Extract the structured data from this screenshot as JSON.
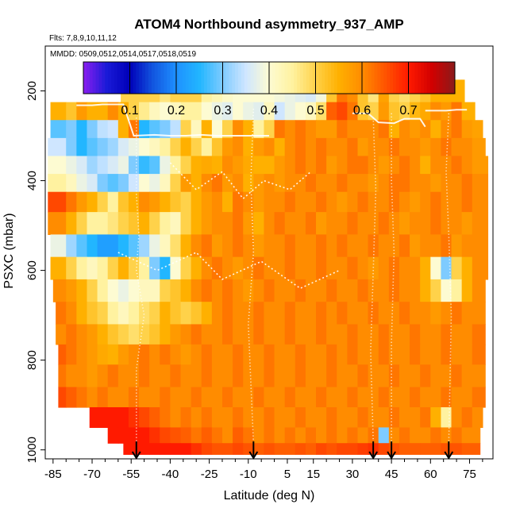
{
  "chart_data": {
    "type": "heatmap",
    "title": "ATOM4 Northbound asymmetry_937_AMP",
    "subtitle_flights": "Flts: 7,8,9,10,11,12",
    "subtitle_dates": "MMDD: 0509,0512,0514,0517,0518,0519",
    "xlabel": "Latitude (deg N)",
    "ylabel": "PSXC (mbar)",
    "xlim": [
      -88,
      84
    ],
    "ylim": [
      1020,
      100
    ],
    "x_ticks": [
      -85,
      -70,
      -55,
      -40,
      -25,
      -10,
      5,
      15,
      30,
      45,
      60,
      75
    ],
    "x_minor_ticks": [
      -80,
      -75,
      -65,
      -60,
      -50,
      -45,
      -35,
      -30,
      -20,
      -15,
      -5,
      0,
      10,
      20,
      25,
      35,
      40,
      50,
      55,
      65,
      70,
      80
    ],
    "y_ticks": [
      200,
      400,
      600,
      800,
      1000
    ],
    "colorbar": {
      "range": [
        0.0,
        0.8
      ],
      "tick_values": [
        0.1,
        0.2,
        0.3,
        0.4,
        0.5,
        0.6,
        0.7
      ],
      "tick_labels": [
        "0.1",
        "0.2",
        "0.3",
        "0.4",
        "0.5",
        "0.6",
        "0.7"
      ],
      "colors": [
        "#8b1ff0",
        "#1a1ad8",
        "#0000b8",
        "#1256e0",
        "#1e90ff",
        "#22b6ff",
        "#7ecbff",
        "#cfe6ff",
        "#fdfbd2",
        "#fff2a0",
        "#ffd24a",
        "#ffb000",
        "#ff8c00",
        "#ff5400",
        "#ff1a00",
        "#d20000",
        "#8b1a1a"
      ]
    },
    "arrow_latitudes": [
      -53,
      -8,
      38,
      45,
      67
    ],
    "x_edges": [
      -84,
      -80,
      -76,
      -72,
      -68,
      -64,
      -60,
      -56,
      -52,
      -48,
      -44,
      -40,
      -36,
      -32,
      -28,
      -24,
      -20,
      -16,
      -12,
      -8,
      -4,
      0,
      4,
      8,
      12,
      16,
      20,
      24,
      28,
      32,
      36,
      40,
      44,
      48,
      52,
      56,
      60,
      64,
      68,
      72,
      76,
      80
    ],
    "levels": [
      {
        "p_top": 175,
        "p_bot": 225,
        "lat_min": -59,
        "lat_max": 73,
        "values": [
          0.5,
          0.5,
          0.5,
          0.5,
          0.5,
          0.5,
          0.5,
          0.5,
          0.5,
          0.5,
          0.47,
          0.5,
          0.5,
          0.5,
          0.45,
          0.43,
          0.41,
          0.4,
          0.4,
          0.4,
          0.4,
          0.39,
          0.38,
          0.37,
          0.36,
          0.39,
          0.52,
          0.62,
          0.6,
          0.52,
          0.47,
          0.57,
          0.5,
          0.48,
          0.5,
          0.52,
          0.55,
          0.55,
          0.55,
          0.55,
          0.55
        ]
      },
      {
        "p_top": 225,
        "p_bot": 265,
        "lat_min": -86,
        "lat_max": 77,
        "values": [
          0.55,
          0.52,
          0.58,
          0.55,
          0.55,
          0.6,
          0.55,
          0.5,
          0.46,
          0.42,
          0.4,
          0.42,
          0.45,
          0.45,
          0.4,
          0.38,
          0.37,
          0.4,
          0.38,
          0.37,
          0.42,
          0.35,
          0.38,
          0.4,
          0.42,
          0.48,
          0.64,
          0.66,
          0.62,
          0.52,
          0.5,
          0.58,
          0.52,
          0.5,
          0.54,
          0.56,
          0.6,
          0.58,
          0.62,
          0.55,
          0.55
        ]
      },
      {
        "p_top": 265,
        "p_bot": 305,
        "lat_min": -86,
        "lat_max": 80,
        "values": [
          0.28,
          0.3,
          0.25,
          0.3,
          0.34,
          0.35,
          0.55,
          0.62,
          0.25,
          0.28,
          0.3,
          0.34,
          0.5,
          0.42,
          0.55,
          0.4,
          0.5,
          0.6,
          0.55,
          0.45,
          0.5,
          0.62,
          0.6,
          0.62,
          0.6,
          0.58,
          0.58,
          0.62,
          0.6,
          0.6,
          0.6,
          0.62,
          0.55,
          0.6,
          0.58,
          0.6,
          0.55,
          0.6,
          0.62,
          0.58,
          0.57
        ]
      },
      {
        "p_top": 305,
        "p_bot": 345,
        "lat_min": -87,
        "lat_max": 81,
        "values": [
          0.35,
          0.3,
          0.25,
          0.28,
          0.3,
          0.32,
          0.36,
          0.38,
          0.4,
          0.42,
          0.45,
          0.5,
          0.55,
          0.5,
          0.45,
          0.52,
          0.58,
          0.6,
          0.55,
          0.58,
          0.6,
          0.55,
          0.6,
          0.62,
          0.6,
          0.62,
          0.6,
          0.6,
          0.62,
          0.58,
          0.6,
          0.6,
          0.62,
          0.6,
          0.6,
          0.58,
          0.6,
          0.62,
          0.6,
          0.6,
          0.58
        ]
      },
      {
        "p_top": 345,
        "p_bot": 385,
        "lat_min": -87,
        "lat_max": 82,
        "values": [
          0.4,
          0.38,
          0.36,
          0.32,
          0.34,
          0.36,
          0.38,
          0.3,
          0.26,
          0.28,
          0.38,
          0.45,
          0.5,
          0.55,
          0.56,
          0.55,
          0.6,
          0.58,
          0.56,
          0.55,
          0.55,
          0.58,
          0.6,
          0.62,
          0.6,
          0.62,
          0.58,
          0.6,
          0.62,
          0.62,
          0.6,
          0.58,
          0.6,
          0.62,
          0.6,
          0.55,
          0.6,
          0.6,
          0.62,
          0.6,
          0.58
        ]
      },
      {
        "p_top": 385,
        "p_bot": 425,
        "lat_min": -87,
        "lat_max": 82,
        "values": [
          0.45,
          0.42,
          0.38,
          0.36,
          0.3,
          0.28,
          0.3,
          0.35,
          0.4,
          0.38,
          0.42,
          0.5,
          0.58,
          0.55,
          0.6,
          0.62,
          0.58,
          0.6,
          0.55,
          0.58,
          0.6,
          0.58,
          0.6,
          0.6,
          0.62,
          0.6,
          0.6,
          0.62,
          0.6,
          0.6,
          0.58,
          0.6,
          0.62,
          0.62,
          0.6,
          0.6,
          0.58,
          0.6,
          0.6,
          0.62,
          0.6
        ]
      },
      {
        "p_top": 425,
        "p_bot": 470,
        "lat_min": -87,
        "lat_max": 82,
        "values": [
          0.66,
          0.62,
          0.58,
          0.55,
          0.5,
          0.45,
          0.52,
          0.55,
          0.6,
          0.58,
          0.55,
          0.52,
          0.5,
          0.55,
          0.58,
          0.6,
          0.55,
          0.62,
          0.6,
          0.58,
          0.6,
          0.6,
          0.62,
          0.6,
          0.6,
          0.62,
          0.6,
          0.58,
          0.6,
          0.62,
          0.6,
          0.6,
          0.62,
          0.6,
          0.58,
          0.6,
          0.62,
          0.6,
          0.6,
          0.62,
          0.6
        ]
      },
      {
        "p_top": 470,
        "p_bot": 520,
        "lat_min": -87,
        "lat_max": 82,
        "values": [
          0.6,
          0.55,
          0.5,
          0.45,
          0.45,
          0.47,
          0.5,
          0.52,
          0.55,
          0.5,
          0.45,
          0.42,
          0.5,
          0.55,
          0.58,
          0.6,
          0.6,
          0.62,
          0.58,
          0.55,
          0.6,
          0.62,
          0.6,
          0.6,
          0.62,
          0.58,
          0.6,
          0.6,
          0.62,
          0.6,
          0.6,
          0.62,
          0.6,
          0.58,
          0.6,
          0.6,
          0.62,
          0.6,
          0.6,
          0.58,
          0.6
        ]
      },
      {
        "p_top": 520,
        "p_bot": 570,
        "lat_min": -86,
        "lat_max": 82,
        "values": [
          0.38,
          0.32,
          0.28,
          0.25,
          0.22,
          0.22,
          0.25,
          0.28,
          0.32,
          0.38,
          0.42,
          0.48,
          0.55,
          0.6,
          0.62,
          0.58,
          0.6,
          0.62,
          0.6,
          0.58,
          0.6,
          0.6,
          0.62,
          0.6,
          0.6,
          0.62,
          0.6,
          0.62,
          0.6,
          0.6,
          0.62,
          0.6,
          0.6,
          0.62,
          0.58,
          0.6,
          0.6,
          0.62,
          0.58,
          0.6,
          0.6
        ]
      },
      {
        "p_top": 570,
        "p_bot": 620,
        "lat_min": -86,
        "lat_max": 82,
        "values": [
          0.55,
          0.5,
          0.45,
          0.42,
          0.45,
          0.5,
          0.55,
          0.5,
          0.45,
          0.3,
          0.25,
          0.4,
          0.5,
          0.55,
          0.6,
          0.62,
          0.6,
          0.58,
          0.6,
          0.62,
          0.6,
          0.6,
          0.62,
          0.6,
          0.6,
          0.62,
          0.6,
          0.6,
          0.62,
          0.6,
          0.58,
          0.6,
          0.62,
          0.6,
          0.6,
          0.55,
          0.4,
          0.3,
          0.5,
          0.55,
          0.6
        ]
      },
      {
        "p_top": 620,
        "p_bot": 670,
        "lat_min": -85,
        "lat_max": 81,
        "values": [
          0.6,
          0.58,
          0.55,
          0.5,
          0.45,
          0.4,
          0.38,
          0.4,
          0.42,
          0.42,
          0.5,
          0.52,
          0.55,
          0.6,
          0.62,
          0.6,
          0.62,
          0.6,
          0.58,
          0.6,
          0.62,
          0.6,
          0.6,
          0.62,
          0.6,
          0.6,
          0.62,
          0.6,
          0.6,
          0.62,
          0.6,
          0.6,
          0.62,
          0.6,
          0.6,
          0.55,
          0.5,
          0.4,
          0.45,
          0.55,
          0.6
        ]
      },
      {
        "p_top": 670,
        "p_bot": 720,
        "lat_min": -84,
        "lat_max": 81,
        "values": [
          0.62,
          0.6,
          0.55,
          0.52,
          0.5,
          0.45,
          0.42,
          0.45,
          0.48,
          0.5,
          0.55,
          0.52,
          0.5,
          0.52,
          0.55,
          0.6,
          0.62,
          0.6,
          0.6,
          0.62,
          0.6,
          0.6,
          0.62,
          0.6,
          0.6,
          0.62,
          0.6,
          0.62,
          0.6,
          0.6,
          0.62,
          0.6,
          0.6,
          0.62,
          0.6,
          0.6,
          0.58,
          0.6,
          0.62,
          0.6,
          0.6
        ]
      },
      {
        "p_top": 720,
        "p_bot": 765,
        "lat_min": -84,
        "lat_max": 81,
        "values": [
          0.6,
          0.62,
          0.6,
          0.58,
          0.55,
          0.52,
          0.5,
          0.48,
          0.5,
          0.52,
          0.55,
          0.58,
          0.6,
          0.62,
          0.6,
          0.6,
          0.62,
          0.6,
          0.6,
          0.62,
          0.6,
          0.6,
          0.62,
          0.6,
          0.6,
          0.62,
          0.6,
          0.6,
          0.62,
          0.6,
          0.6,
          0.62,
          0.6,
          0.6,
          0.62,
          0.6,
          0.6,
          0.62,
          0.6,
          0.6,
          0.62
        ]
      },
      {
        "p_top": 765,
        "p_bot": 810,
        "lat_min": -83,
        "lat_max": 81,
        "values": [
          0.64,
          0.62,
          0.6,
          0.58,
          0.56,
          0.55,
          0.58,
          0.6,
          0.62,
          0.6,
          0.62,
          0.6,
          0.58,
          0.6,
          0.62,
          0.6,
          0.6,
          0.62,
          0.6,
          0.6,
          0.62,
          0.6,
          0.6,
          0.62,
          0.6,
          0.6,
          0.62,
          0.6,
          0.62,
          0.6,
          0.6,
          0.62,
          0.6,
          0.6,
          0.62,
          0.6,
          0.6,
          0.62,
          0.6,
          0.6,
          0.62
        ]
      },
      {
        "p_top": 810,
        "p_bot": 860,
        "lat_min": -83,
        "lat_max": 81,
        "values": [
          0.62,
          0.6,
          0.6,
          0.58,
          0.6,
          0.62,
          0.6,
          0.6,
          0.62,
          0.6,
          0.6,
          0.62,
          0.6,
          0.6,
          0.62,
          0.6,
          0.6,
          0.62,
          0.6,
          0.6,
          0.62,
          0.6,
          0.6,
          0.62,
          0.6,
          0.6,
          0.62,
          0.6,
          0.6,
          0.62,
          0.6,
          0.6,
          0.62,
          0.6,
          0.6,
          0.62,
          0.6,
          0.6,
          0.62,
          0.6,
          0.6
        ]
      },
      {
        "p_top": 860,
        "p_bot": 905,
        "lat_min": -83,
        "lat_max": 81,
        "values": [
          0.66,
          0.64,
          0.62,
          0.6,
          0.62,
          0.6,
          0.6,
          0.62,
          0.6,
          0.6,
          0.62,
          0.6,
          0.6,
          0.62,
          0.6,
          0.6,
          0.62,
          0.6,
          0.6,
          0.62,
          0.6,
          0.6,
          0.62,
          0.6,
          0.6,
          0.62,
          0.6,
          0.6,
          0.62,
          0.6,
          0.6,
          0.62,
          0.6,
          0.6,
          0.62,
          0.6,
          0.6,
          0.62,
          0.6,
          0.6,
          0.62
        ]
      },
      {
        "p_top": 905,
        "p_bot": 950,
        "lat_min": -71,
        "lat_max": 80,
        "values": [
          0.7,
          0.7,
          0.7,
          0.7,
          0.7,
          0.7,
          0.7,
          0.68,
          0.66,
          0.64,
          0.62,
          0.6,
          0.62,
          0.6,
          0.62,
          0.6,
          0.6,
          0.62,
          0.6,
          0.6,
          0.62,
          0.6,
          0.6,
          0.62,
          0.6,
          0.6,
          0.62,
          0.6,
          0.6,
          0.62,
          0.6,
          0.6,
          0.62,
          0.6,
          0.6,
          0.62,
          0.55,
          0.45,
          0.6,
          0.62,
          0.6
        ]
      },
      {
        "p_top": 950,
        "p_bot": 985,
        "lat_min": -64,
        "lat_max": 79,
        "values": [
          0.7,
          0.7,
          0.7,
          0.7,
          0.7,
          0.7,
          0.7,
          0.7,
          0.7,
          0.68,
          0.66,
          0.65,
          0.64,
          0.62,
          0.64,
          0.62,
          0.6,
          0.64,
          0.62,
          0.6,
          0.62,
          0.6,
          0.62,
          0.6,
          0.62,
          0.6,
          0.62,
          0.6,
          0.62,
          0.6,
          0.62,
          0.3,
          0.6,
          0.62,
          0.6,
          0.6,
          0.62,
          0.6,
          0.62,
          0.6,
          0.6
        ]
      },
      {
        "p_top": 985,
        "p_bot": 1010,
        "lat_min": -58,
        "lat_max": 79,
        "values": [
          0.7,
          0.7,
          0.7,
          0.7,
          0.7,
          0.7,
          0.7,
          0.7,
          0.7,
          0.7,
          0.7,
          0.7,
          0.7,
          0.68,
          0.66,
          0.65,
          0.65,
          0.66,
          0.65,
          0.64,
          0.65,
          0.64,
          0.64,
          0.65,
          0.64,
          0.66,
          0.65,
          0.66,
          0.66,
          0.67,
          0.68,
          0.66,
          0.65,
          0.64,
          0.64,
          0.64,
          0.64,
          0.65,
          0.65,
          0.64,
          0.64
        ]
      }
    ]
  }
}
